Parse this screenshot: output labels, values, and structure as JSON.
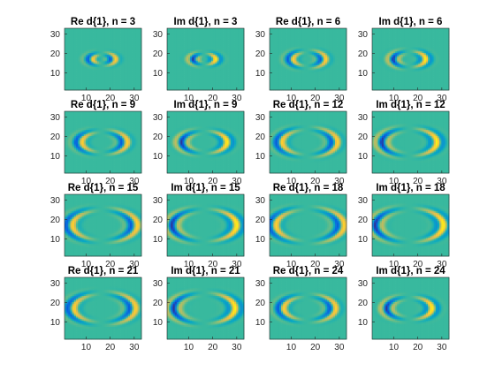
{
  "chart_data": {
    "type": "heatmap",
    "colormap": "parula",
    "colormap_stops": [
      "#352a87",
      "#0363e1",
      "#1485d4",
      "#06a7c6",
      "#38b99e",
      "#92bf73",
      "#d9ba56",
      "#fcce2e",
      "#f9fb0e"
    ],
    "background_value_color": "#1fb3b0",
    "grid": false,
    "layout": {
      "rows": 4,
      "cols": 4
    },
    "x_ticks": [
      10,
      20,
      30
    ],
    "y_ticks": [
      10,
      20,
      30
    ],
    "xlim": [
      1,
      33
    ],
    "ylim": [
      1,
      33
    ],
    "panels": [
      {
        "title": "Re d{1}, n = 3",
        "part": "Re",
        "n": 3,
        "ring_radius": 3.5,
        "lobe_amplitude": 1.0
      },
      {
        "title": "Im d{1}, n = 3",
        "part": "Im",
        "n": 3,
        "ring_radius": 3.5,
        "lobe_amplitude": 1.0
      },
      {
        "title": "Re d{1}, n = 6",
        "part": "Re",
        "n": 6,
        "ring_radius": 5.0,
        "lobe_amplitude": 1.0
      },
      {
        "title": "Im d{1}, n = 6",
        "part": "Im",
        "n": 6,
        "ring_radius": 5.0,
        "lobe_amplitude": 1.0
      },
      {
        "title": "Re d{1}, n = 9",
        "part": "Re",
        "n": 9,
        "ring_radius": 7.0,
        "lobe_amplitude": 1.0
      },
      {
        "title": "Im d{1}, n = 9",
        "part": "Im",
        "n": 9,
        "ring_radius": 7.0,
        "lobe_amplitude": 1.0
      },
      {
        "title": "Re d{1}, n = 12",
        "part": "Re",
        "n": 12,
        "ring_radius": 8.5,
        "lobe_amplitude": 1.0
      },
      {
        "title": "Im d{1}, n = 12",
        "part": "Im",
        "n": 12,
        "ring_radius": 8.5,
        "lobe_amplitude": 1.0
      },
      {
        "title": "Re d{1}, n = 15",
        "part": "Re",
        "n": 15,
        "ring_radius": 10.0,
        "lobe_amplitude": 1.0
      },
      {
        "title": "Im d{1}, n = 15",
        "part": "Im",
        "n": 15,
        "ring_radius": 10.0,
        "lobe_amplitude": 1.0
      },
      {
        "title": "Re d{1}, n = 18",
        "part": "Re",
        "n": 18,
        "ring_radius": 10.5,
        "lobe_amplitude": 1.0
      },
      {
        "title": "Im d{1}, n = 18",
        "part": "Im",
        "n": 18,
        "ring_radius": 10.5,
        "lobe_amplitude": 1.0
      },
      {
        "title": "Re d{1}, n = 21",
        "part": "Re",
        "n": 21,
        "ring_radius": 9.5,
        "lobe_amplitude": 1.0
      },
      {
        "title": "Im d{1}, n = 21",
        "part": "Im",
        "n": 21,
        "ring_radius": 9.5,
        "lobe_amplitude": 1.0
      },
      {
        "title": "Re d{1}, n = 24",
        "part": "Re",
        "n": 24,
        "ring_radius": 8.0,
        "lobe_amplitude": 1.0
      },
      {
        "title": "Im d{1}, n = 24",
        "part": "Im",
        "n": 24,
        "ring_radius": 7.0,
        "lobe_amplitude": 1.0
      }
    ]
  }
}
